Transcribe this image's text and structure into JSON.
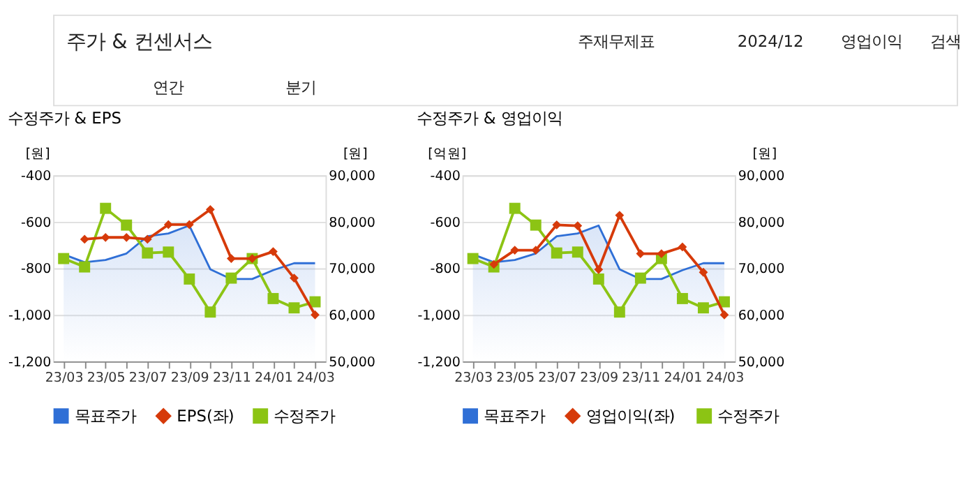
{
  "chart_data": [
    {
      "type": "other",
      "title": "주가 & 컨센서스",
      "annotations": [
        "주재무제표",
        "2024/12",
        "영업이익",
        "검색",
        "연간",
        "분기"
      ]
    },
    {
      "type": "line",
      "title": "수정주가 & EPS",
      "ylabel": "[원]",
      "y2label": "[원]",
      "categories": [
        "23/03",
        null,
        "23/05",
        null,
        "23/07",
        null,
        "23/09",
        null,
        "23/11",
        null,
        "24/01",
        null,
        "24/03"
      ],
      "ylim": [
        -1200,
        -400
      ],
      "yticks": [
        {
          "value": -1200,
          "label": "-1,200"
        },
        {
          "value": -1000,
          "label": "-1,000"
        },
        -800,
        -600,
        -400
      ],
      "y2lim": [
        50000,
        90000
      ],
      "y2ticks": [
        {
          "value": 50000,
          "label": "50,000"
        },
        {
          "value": 60000,
          "label": "60,000"
        },
        {
          "value": 70000,
          "label": "70,000"
        },
        {
          "value": 80000,
          "label": "80,000"
        },
        {
          "value": 90000,
          "label": "90,000"
        }
      ],
      "grid": "y",
      "legend": "bottom",
      "series": [
        {
          "name": "목표주가",
          "type": "area",
          "axis": "y2",
          "marker": "none",
          "color": "#2f6fd6",
          "values": [
            73000,
            71300,
            71800,
            73200,
            76900,
            77500,
            79200,
            69800,
            67700,
            67700,
            69600,
            71100,
            71100
          ]
        },
        {
          "name": "EPS(좌)",
          "type": "line",
          "axis": "y",
          "marker": "diamond",
          "color": "#d63a0a",
          "values": [
            null,
            -675,
            -667,
            -667,
            -675,
            -612,
            -612,
            -547,
            -758,
            -758,
            -728,
            -842,
            -1000
          ]
        },
        {
          "name": "수정주가",
          "type": "line",
          "axis": "y2",
          "marker": "square",
          "color": "#8cc414",
          "values": [
            72100,
            70300,
            82900,
            79300,
            73300,
            73500,
            67700,
            60600,
            67900,
            72100,
            63500,
            61500,
            62800
          ]
        }
      ]
    },
    {
      "type": "line",
      "title": "수정주가 & 영업이익",
      "ylabel": "[억원]",
      "y2label": "[원]",
      "categories": [
        "23/03",
        null,
        "23/05",
        null,
        "23/07",
        null,
        "23/09",
        null,
        "23/11",
        null,
        "24/01",
        null,
        "24/03"
      ],
      "ylim": [
        -1200,
        -400
      ],
      "yticks": [
        {
          "value": -1200,
          "label": "-1,200"
        },
        {
          "value": -1000,
          "label": "-1,000"
        },
        -800,
        -600,
        -400
      ],
      "y2lim": [
        50000,
        90000
      ],
      "y2ticks": [
        {
          "value": 50000,
          "label": "50,000"
        },
        {
          "value": 60000,
          "label": "60,000"
        },
        {
          "value": 70000,
          "label": "70,000"
        },
        {
          "value": 80000,
          "label": "80,000"
        },
        {
          "value": 90000,
          "label": "90,000"
        }
      ],
      "grid": "y",
      "legend": "bottom",
      "series": [
        {
          "name": "목표주가",
          "type": "area",
          "axis": "y2",
          "marker": "none",
          "color": "#2f6fd6",
          "values": [
            73000,
            71300,
            71800,
            73200,
            76900,
            77500,
            79200,
            69800,
            67700,
            67700,
            69600,
            71100,
            71100
          ]
        },
        {
          "name": "영업이익(좌)",
          "type": "line",
          "axis": "y",
          "marker": "diamond",
          "color": "#d63a0a",
          "values": [
            null,
            -783,
            -722,
            -722,
            -613,
            -617,
            -805,
            -572,
            -737,
            -737,
            -708,
            -817,
            -1000
          ]
        },
        {
          "name": "수정주가",
          "type": "line",
          "axis": "y2",
          "marker": "square",
          "color": "#8cc414",
          "values": [
            72100,
            70300,
            82900,
            79300,
            73300,
            73500,
            67700,
            60600,
            67900,
            72100,
            63500,
            61500,
            62800
          ]
        }
      ]
    }
  ]
}
